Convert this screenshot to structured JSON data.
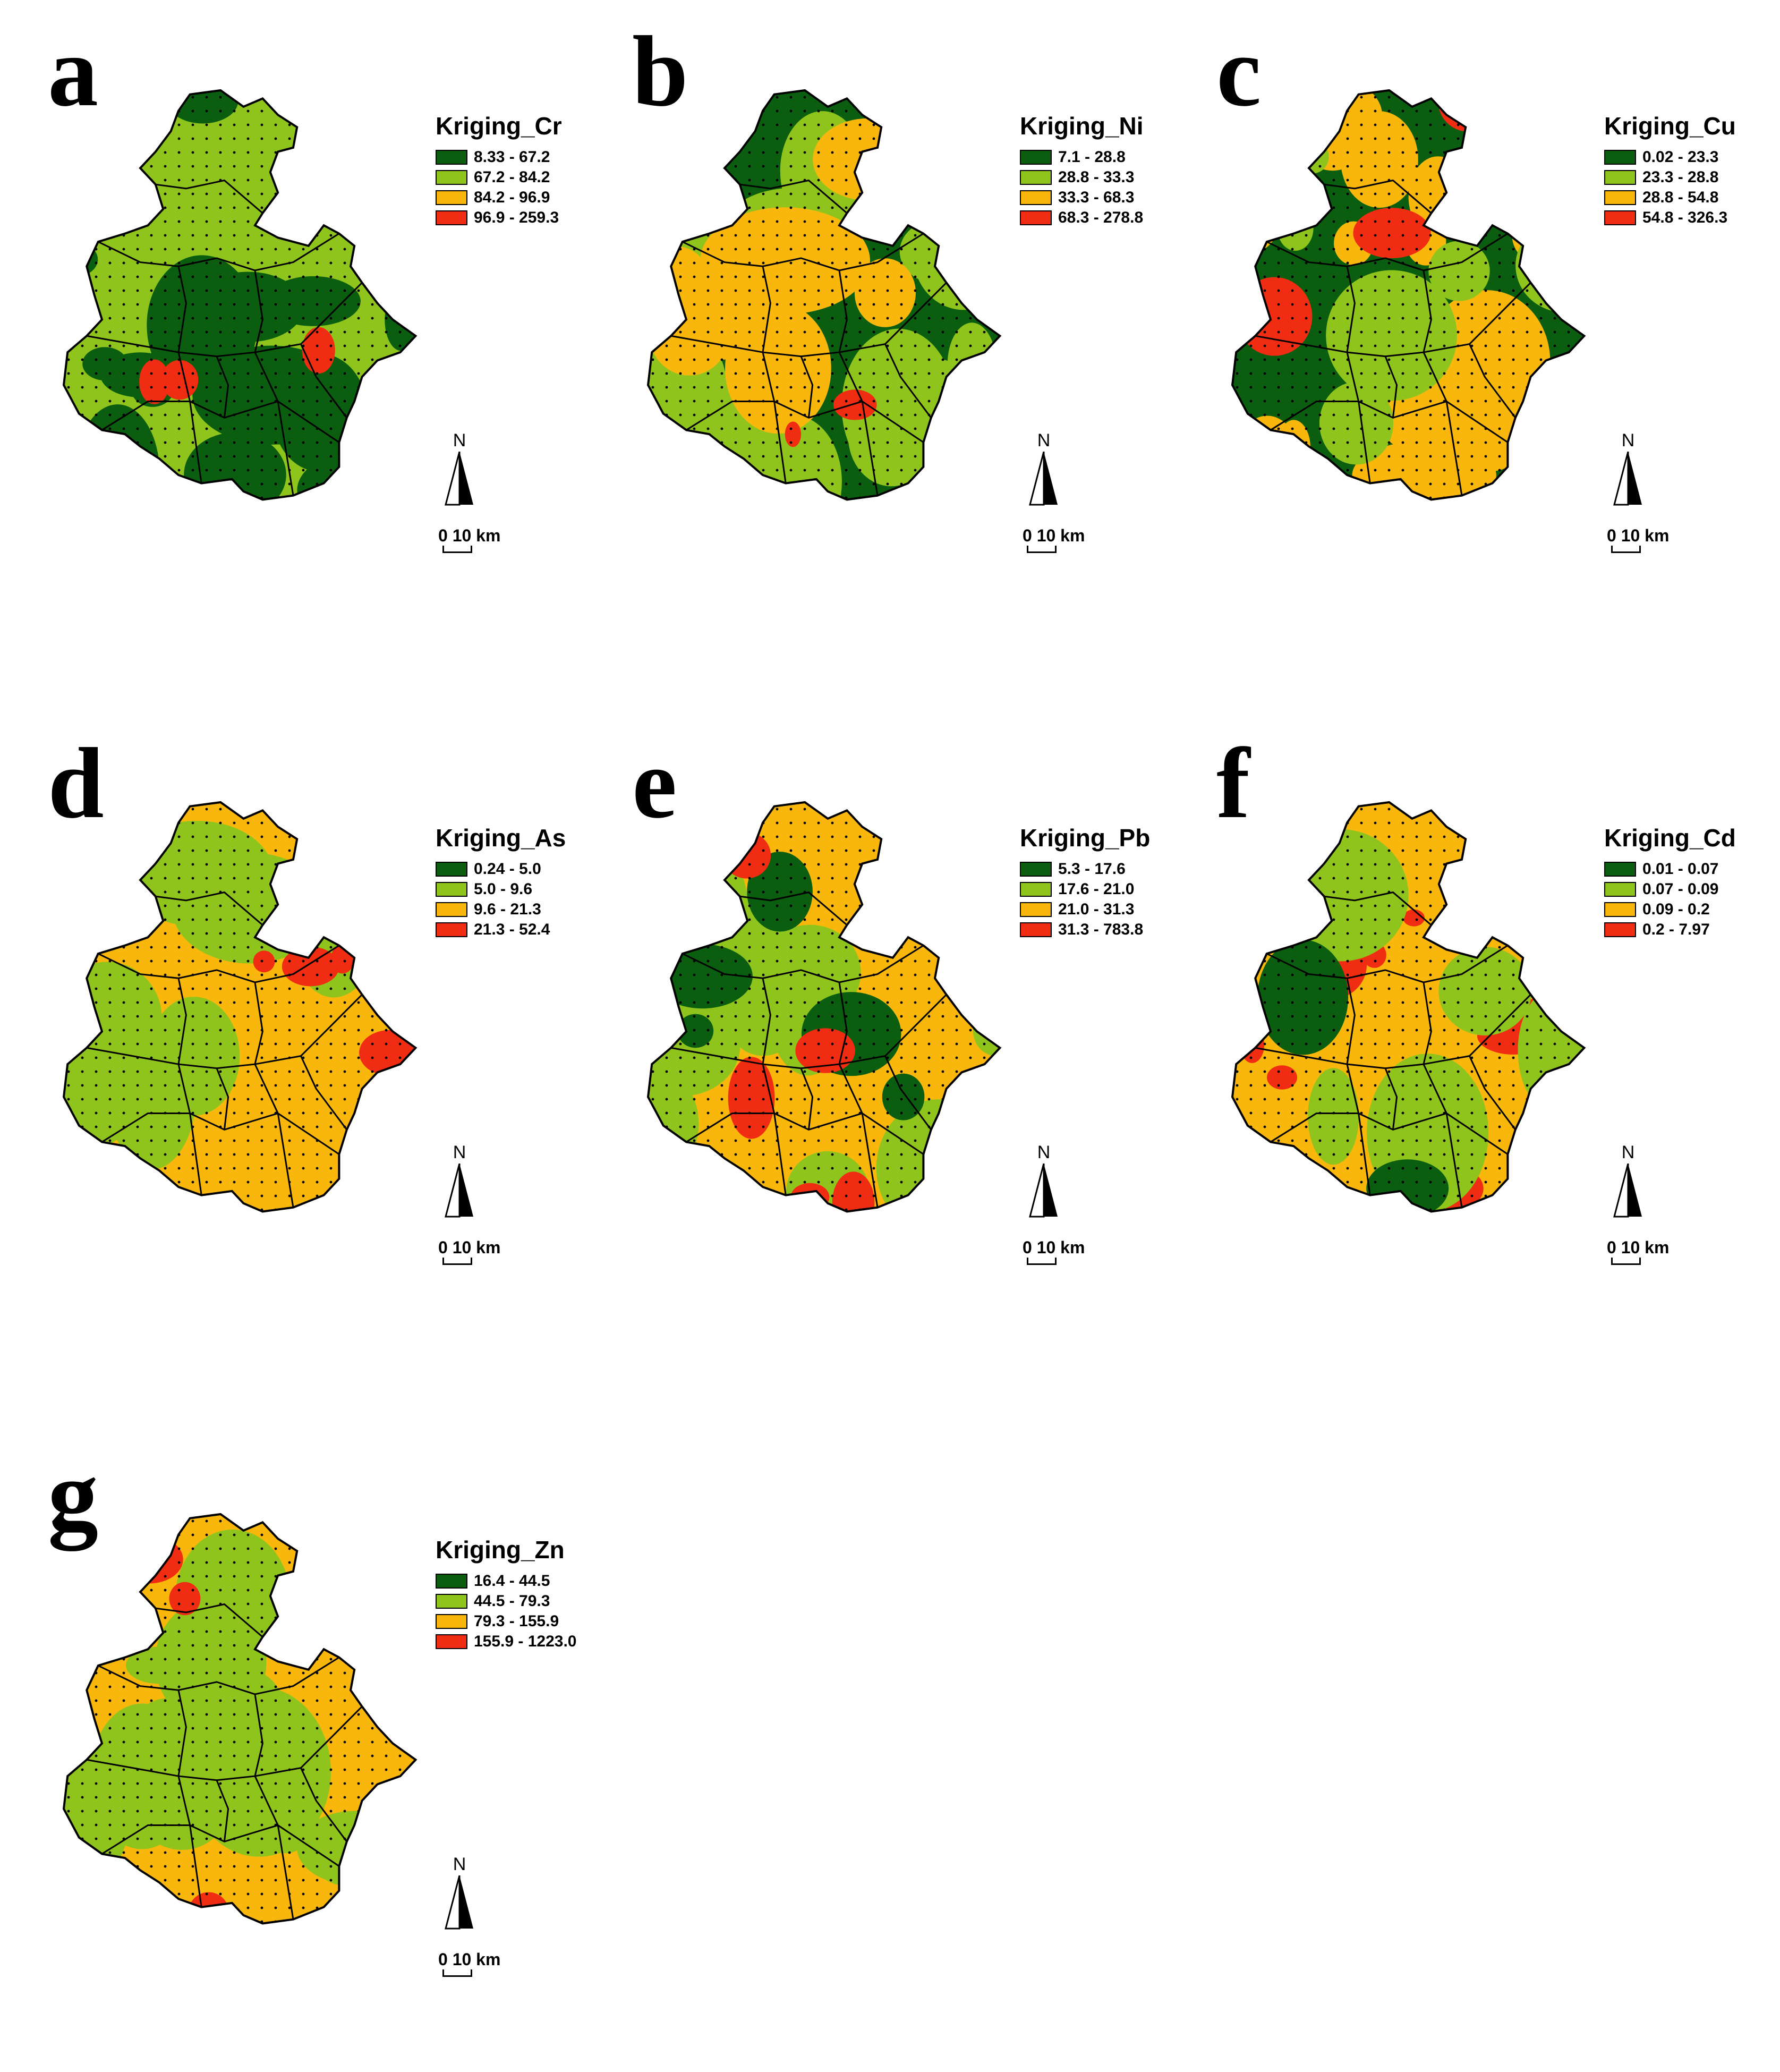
{
  "panels": [
    {
      "letter": "a",
      "legend_title": "Kriging_Cr",
      "classes": [
        "8.33 - 67.2",
        "67.2 - 84.2",
        "84.2 - 96.9",
        "96.9 - 259.3"
      ],
      "north_label": "N",
      "scale_label": "0  10 km"
    },
    {
      "letter": "b",
      "legend_title": "Kriging_Ni",
      "classes": [
        "7.1 - 28.8",
        "28.8 - 33.3",
        "33.3 - 68.3",
        "68.3 - 278.8"
      ],
      "north_label": "N",
      "scale_label": "0  10 km"
    },
    {
      "letter": "c",
      "legend_title": "Kriging_Cu",
      "classes": [
        "0.02 - 23.3",
        "23.3 - 28.8",
        "28.8 - 54.8",
        "54.8 - 326.3"
      ],
      "north_label": "N",
      "scale_label": "0  10 km"
    },
    {
      "letter": "d",
      "legend_title": "Kriging_As",
      "classes": [
        "0.24 - 5.0",
        "5.0 - 9.6",
        "9.6 - 21.3",
        "21.3 - 52.4"
      ],
      "north_label": "N",
      "scale_label": "0  10 km"
    },
    {
      "letter": "e",
      "legend_title": "Kriging_Pb",
      "classes": [
        "5.3 - 17.6",
        "17.6 - 21.0",
        "21.0 - 31.3",
        "31.3 - 783.8"
      ],
      "north_label": "N",
      "scale_label": "0  10 km"
    },
    {
      "letter": "f",
      "legend_title": "Kriging_Cd",
      "classes": [
        "0.01 - 0.07",
        "0.07 - 0.09",
        "0.09 - 0.2",
        "0.2 - 7.97"
      ],
      "north_label": "N",
      "scale_label": "0  10 km"
    },
    {
      "letter": "g",
      "legend_title": "Kriging_Zn",
      "classes": [
        "16.4 - 44.5",
        "44.5 - 79.3",
        "79.3 - 155.9",
        "155.9 - 1223.0"
      ],
      "north_label": "N",
      "scale_label": "0  10 km"
    }
  ],
  "class_colors": [
    "#0b5e10",
    "#8fc41d",
    "#f9b70c",
    "#f02d12"
  ],
  "boundary_color": "#000000",
  "panel_dominant": {
    "a": {
      "base": 1,
      "blobs": [
        [
          0,
          0.35
        ],
        [
          3,
          0.03
        ]
      ]
    },
    "b": {
      "base": 0,
      "blobs": [
        [
          1,
          0.3
        ],
        [
          2,
          0.18
        ],
        [
          3,
          0.02
        ]
      ]
    },
    "c": {
      "base": 0,
      "blobs": [
        [
          2,
          0.35
        ],
        [
          1,
          0.15
        ],
        [
          3,
          0.04
        ]
      ]
    },
    "d": {
      "base": 2,
      "blobs": [
        [
          1,
          0.15
        ],
        [
          3,
          0.06
        ]
      ]
    },
    "e": {
      "base": 2,
      "blobs": [
        [
          1,
          0.18
        ],
        [
          0,
          0.1
        ],
        [
          3,
          0.12
        ]
      ]
    },
    "f": {
      "base": 2,
      "blobs": [
        [
          3,
          0.16
        ],
        [
          1,
          0.08
        ],
        [
          0,
          0.04
        ]
      ]
    },
    "g": {
      "base": 2,
      "blobs": [
        [
          1,
          0.3
        ],
        [
          3,
          0.06
        ]
      ]
    }
  }
}
